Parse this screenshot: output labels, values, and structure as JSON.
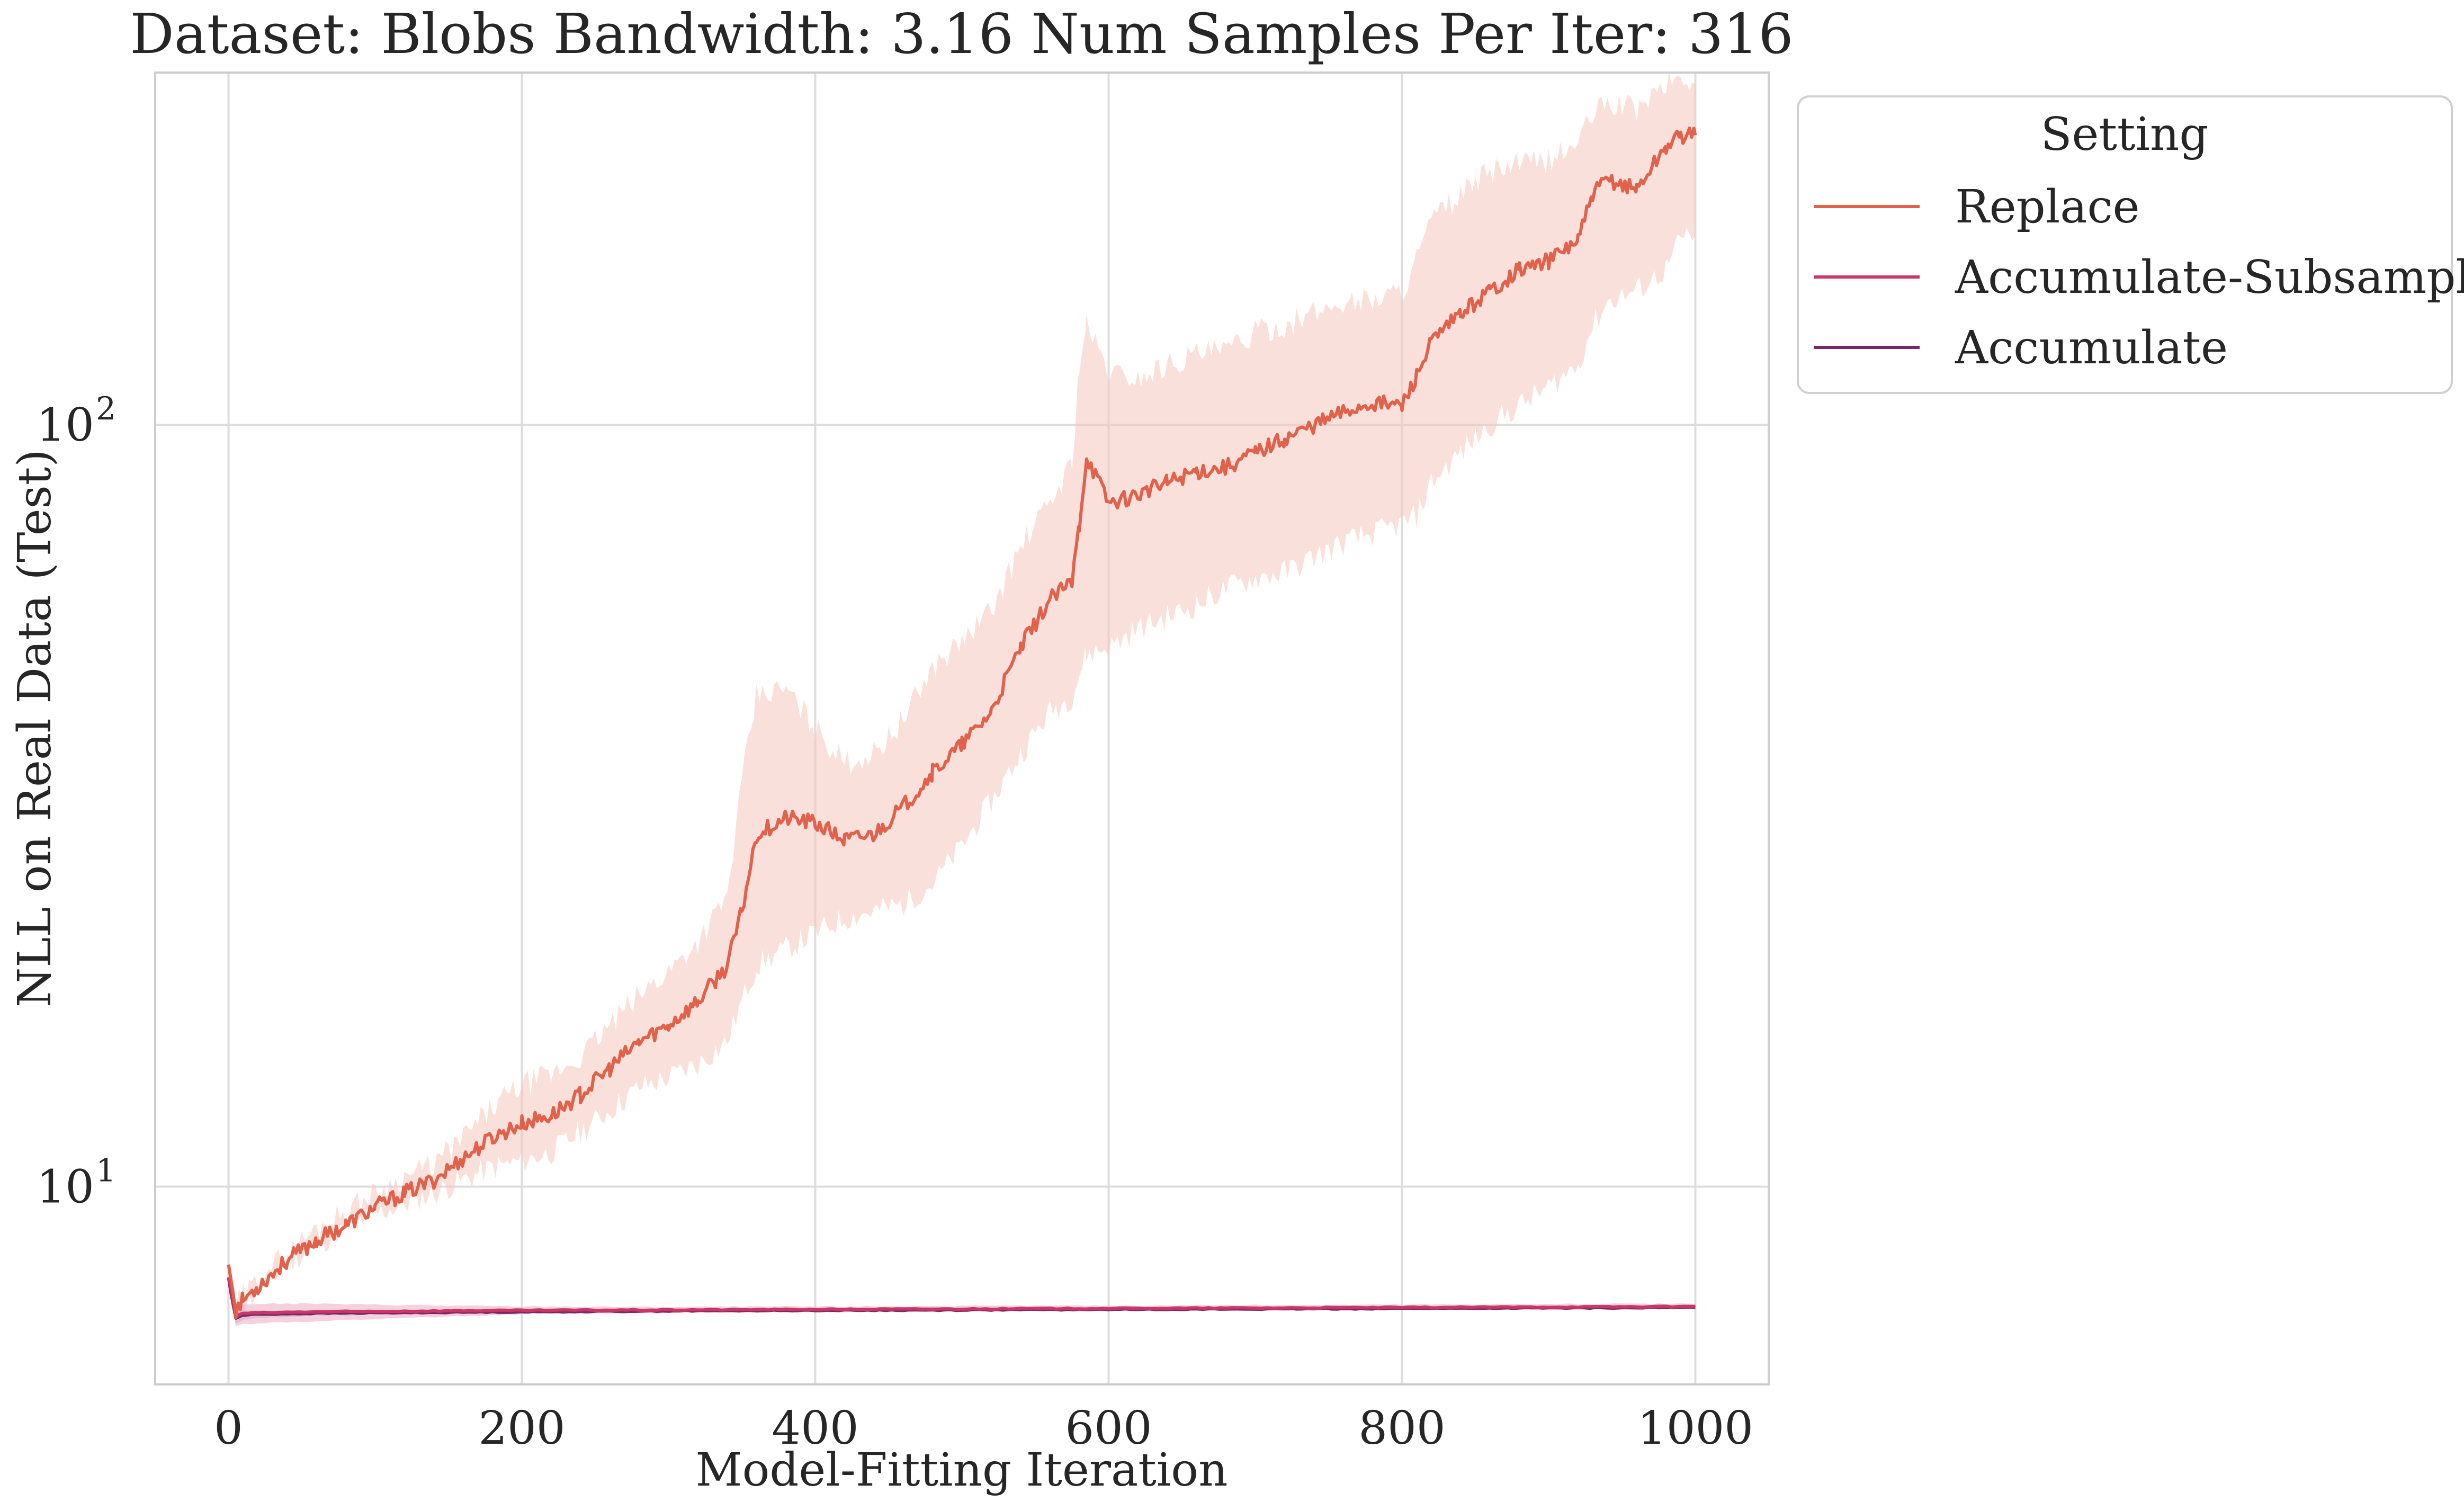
{
  "chart_data": {
    "type": "line",
    "title": "Dataset: Blobs Bandwidth: 3.16 Num Samples Per Iter: 316",
    "xlabel": "Model-Fitting Iteration",
    "ylabel": "NLL on Real Data (Test)",
    "xlim": [
      -50,
      1050
    ],
    "ylim": [
      5.5,
      290
    ],
    "y_scale": "log",
    "x_ticks": [
      0,
      200,
      400,
      600,
      800,
      1000
    ],
    "x_tick_labels": [
      "0",
      "200",
      "400",
      "600",
      "800",
      "1000"
    ],
    "y_ticks": [
      10,
      100
    ],
    "y_tick_labels": [
      {
        "base": "10",
        "exp": "1"
      },
      {
        "base": "10",
        "exp": "2"
      }
    ],
    "grid": true,
    "legend": {
      "title": "Setting",
      "placement": "outside-upper-right"
    },
    "series": [
      {
        "name": "Replace",
        "color": "#e1614a",
        "band_color": "#f4c7bd",
        "x": [
          0,
          5,
          10,
          20,
          40,
          60,
          80,
          100,
          120,
          140,
          160,
          180,
          200,
          220,
          240,
          260,
          280,
          300,
          320,
          340,
          350,
          360,
          380,
          400,
          420,
          440,
          460,
          480,
          500,
          520,
          540,
          560,
          575,
          580,
          585,
          600,
          620,
          640,
          660,
          680,
          700,
          720,
          740,
          760,
          780,
          800,
          810,
          820,
          840,
          860,
          880,
          900,
          920,
          930,
          940,
          960,
          980,
          990,
          1000
        ],
        "y": [
          7.9,
          6.9,
          7.1,
          7.4,
          8.0,
          8.5,
          8.9,
          9.4,
          9.8,
          10.2,
          10.9,
          11.6,
          12.1,
          12.4,
          13.2,
          14.3,
          15.5,
          16.3,
          17.5,
          19.5,
          23.0,
          29.0,
          30.5,
          30.0,
          28.5,
          29.0,
          31.5,
          35.0,
          38.0,
          42.0,
          51.0,
          59.0,
          62.0,
          74.0,
          91.0,
          79.0,
          81.0,
          84.0,
          87.0,
          88.0,
          92.0,
          96.0,
          100.0,
          104.0,
          107.0,
          106.0,
          116.0,
          128.0,
          140.0,
          150.0,
          160.0,
          164.0,
          175.0,
          200.0,
          210.0,
          204.0,
          232.0,
          240.0,
          240.0
        ],
        "lower": [
          7.8,
          6.8,
          7.0,
          7.3,
          7.9,
          8.4,
          8.8,
          9.2,
          9.5,
          9.8,
          10.2,
          10.6,
          10.8,
          11.1,
          11.8,
          12.6,
          13.5,
          13.9,
          14.5,
          15.5,
          17.5,
          19.5,
          20.5,
          21.5,
          22.5,
          23.0,
          23.5,
          25.0,
          28.0,
          32.0,
          37.0,
          42.0,
          44.0,
          47.0,
          50.0,
          51.0,
          54.0,
          56.0,
          58.0,
          61.0,
          63.0,
          64.0,
          67.0,
          70.0,
          72.0,
          74.0,
          76.0,
          84.0,
          92.0,
          100.0,
          106.0,
          112.0,
          120.0,
          135.0,
          145.0,
          150.0,
          160.0,
          175.0,
          178.0
        ],
        "upper": [
          8.0,
          7.0,
          7.2,
          7.5,
          8.2,
          8.8,
          9.3,
          9.8,
          10.3,
          10.7,
          11.6,
          12.7,
          13.6,
          14.0,
          14.8,
          16.3,
          17.8,
          19.2,
          21.0,
          24.0,
          34.0,
          44.0,
          45.0,
          40.0,
          36.0,
          37.0,
          41.0,
          48.0,
          52.0,
          57.0,
          69.0,
          79.0,
          89.0,
          120.0,
          135.0,
          117.0,
          115.0,
          120.0,
          124.0,
          125.0,
          132.0,
          135.0,
          140.0,
          145.0,
          146.0,
          150.0,
          165.0,
          185.0,
          200.0,
          215.0,
          220.0,
          222.0,
          235.0,
          255.0,
          265.0,
          260.0,
          280.0,
          285.0,
          280.0
        ]
      },
      {
        "name": "Accumulate-Subsample",
        "color": "#c93768",
        "band_color": "#ecb3c6",
        "x": [
          0,
          2,
          5,
          10,
          20,
          40,
          60,
          100,
          200,
          300,
          400,
          500,
          600,
          700,
          800,
          900,
          1000
        ],
        "y": [
          7.6,
          7.3,
          6.75,
          6.82,
          6.83,
          6.84,
          6.85,
          6.86,
          6.88,
          6.89,
          6.9,
          6.91,
          6.92,
          6.93,
          6.94,
          6.95,
          6.96
        ],
        "lower": [
          7.5,
          7.1,
          6.55,
          6.6,
          6.62,
          6.64,
          6.65,
          6.7,
          6.8,
          6.83,
          6.85,
          6.86,
          6.87,
          6.88,
          6.89,
          6.9,
          6.91
        ],
        "upper": [
          7.7,
          7.5,
          6.95,
          7.0,
          7.02,
          7.02,
          7.02,
          7.0,
          6.96,
          6.95,
          6.96,
          6.97,
          6.98,
          6.99,
          7.0,
          7.01,
          7.02
        ]
      },
      {
        "name": "Accumulate",
        "color": "#7a2966",
        "band_color": "#d6b1cc",
        "x": [
          0,
          2,
          5,
          10,
          20,
          40,
          60,
          100,
          200,
          300,
          400,
          500,
          600,
          700,
          800,
          900,
          1000
        ],
        "y": [
          7.6,
          7.2,
          6.72,
          6.78,
          6.8,
          6.81,
          6.82,
          6.83,
          6.85,
          6.87,
          6.88,
          6.89,
          6.9,
          6.91,
          6.92,
          6.93,
          6.94
        ],
        "lower": [
          7.5,
          7.0,
          6.6,
          6.68,
          6.72,
          6.75,
          6.77,
          6.79,
          6.82,
          6.84,
          6.85,
          6.86,
          6.87,
          6.88,
          6.89,
          6.9,
          6.91
        ],
        "upper": [
          7.7,
          7.4,
          6.85,
          6.88,
          6.88,
          6.87,
          6.87,
          6.87,
          6.88,
          6.9,
          6.91,
          6.92,
          6.93,
          6.94,
          6.95,
          6.96,
          6.97
        ]
      }
    ]
  }
}
